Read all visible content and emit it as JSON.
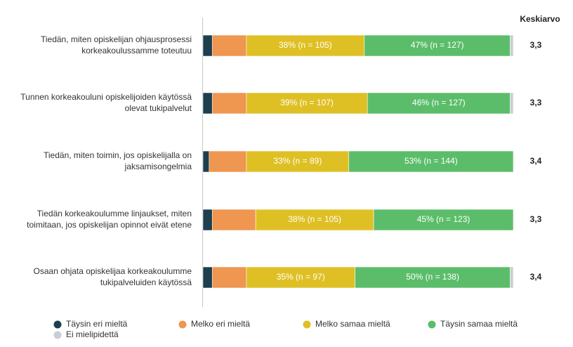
{
  "chart_data": {
    "type": "stacked-bar-horizontal",
    "categories": [
      [
        "Tiedän, miten opiskelijan ohjausprosessi",
        "korkeakoulussamme toteutuu"
      ],
      [
        "Tunnen korkeakouluni opiskelijoiden käytössä",
        "olevat tukipalvelut"
      ],
      [
        "Tiedän, miten toimin, jos opiskelijalla on",
        "jaksamisongelmia"
      ],
      [
        "Tiedän korkeakoulumme linjaukset, miten",
        "toimitaan, jos opiskelijan opinnot eivät etene"
      ],
      [
        "Osaan ohjata opiskelijaa korkeakoulumme",
        "tukipalveluiden käytössä"
      ]
    ],
    "series": [
      {
        "name": "Täysin eri mieltä",
        "color": "#1d3f4e",
        "values": [
          3,
          3,
          2,
          3,
          3
        ]
      },
      {
        "name": "Melko eri mieltä",
        "color": "#ef9650",
        "values": [
          11,
          11,
          12,
          14,
          11
        ]
      },
      {
        "name": "Melko samaa mieltä",
        "color": "#dfc024",
        "values": [
          38,
          39,
          33,
          38,
          35
        ],
        "value_labels": [
          "38% (n = 105)",
          "39% (n = 107)",
          "33% (n = 89)",
          "38% (n = 105)",
          "35% (n = 97)"
        ]
      },
      {
        "name": "Täysin samaa mieltä",
        "color": "#5bbd6a",
        "values": [
          47,
          46,
          53,
          45,
          50
        ],
        "value_labels": [
          "47% (n = 127)",
          "46% (n = 127)",
          "53% (n = 144)",
          "45% (n = 123)",
          "50% (n = 138)"
        ]
      },
      {
        "name": "Ei mielipidettä",
        "color": "#c9ced4",
        "values": [
          1,
          1,
          0,
          0,
          1
        ]
      }
    ],
    "xlim": [
      0,
      100
    ],
    "means": {
      "title": "Keskiarvo",
      "values": [
        3.3,
        3.3,
        3.4,
        3.3,
        3.4
      ],
      "value_labels": [
        "3,3",
        "3,3",
        "3,4",
        "3,3",
        "3,4"
      ]
    }
  }
}
